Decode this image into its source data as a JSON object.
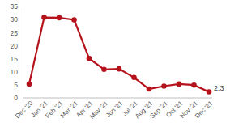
{
  "chart_data": {
    "type": "line",
    "categories": [
      "Dec '20",
      "Jan '21",
      "Feb '21",
      "Mar '21",
      "Apr '21",
      "May '21",
      "Jun '21",
      "Jul '21",
      "Aug '21",
      "Sep '21",
      "Oct '21",
      "Nov '21",
      "Dec '21"
    ],
    "values": [
      5.3,
      30.8,
      30.7,
      29.9,
      15.1,
      10.9,
      11.1,
      7.8,
      3.4,
      4.5,
      5.3,
      4.9,
      2.3
    ],
    "value_labels": [
      null,
      null,
      null,
      null,
      null,
      null,
      null,
      null,
      null,
      null,
      null,
      null,
      "2.3"
    ],
    "data_labels": true,
    "color": "#b5121b",
    "marker": "circle",
    "ylim": [
      0,
      35
    ],
    "yticks": [
      0,
      5,
      10,
      15,
      20,
      25,
      30,
      35
    ],
    "grid": false
  }
}
